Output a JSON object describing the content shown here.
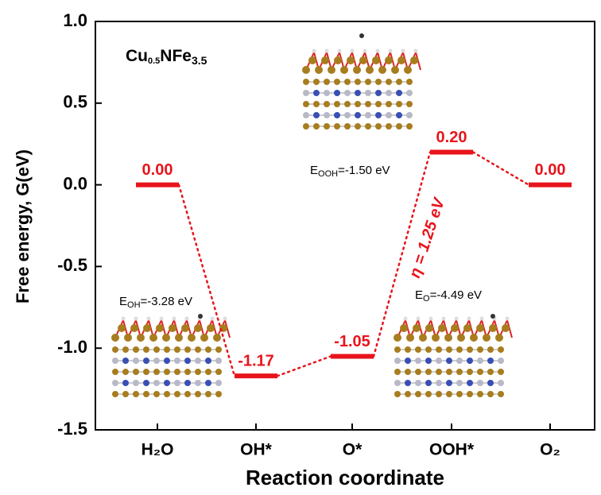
{
  "chart_data": {
    "type": "energy-levels",
    "sample_label": {
      "parts": [
        "Cu",
        "0.5",
        "NFe",
        "3.5"
      ]
    },
    "y_label": "Free energy, G(eV)",
    "x_label": "Reaction coordinate",
    "categories": [
      "H₂O",
      "OH*",
      "O*",
      "OOH*",
      "O₂"
    ],
    "values": [
      0.0,
      -1.17,
      -1.05,
      0.2,
      0.0
    ],
    "value_labels": [
      "0.00",
      "-1.17",
      "-1.05",
      "0.20",
      "0.00"
    ],
    "color": "#e8141b",
    "ylim": [
      -1.5,
      1.0
    ],
    "yticks": [
      {
        "value": -1.5,
        "label": "-1.5"
      },
      {
        "value": -1,
        "label": "-1.0"
      },
      {
        "value": -0.5,
        "label": "-0.5"
      },
      {
        "value": 0,
        "label": "0.0"
      },
      {
        "value": 0.5,
        "label": "0.5"
      },
      {
        "value": 1,
        "label": "1.0"
      }
    ],
    "annotations": [
      {
        "symbol": "E",
        "subscript": "OH",
        "text": "=-3.28 eV"
      },
      {
        "symbol": "E",
        "subscript": "OOH",
        "text": "=-1.50 eV"
      },
      {
        "symbol": "E",
        "subscript": "O",
        "text": "=-4.49 eV"
      }
    ],
    "overpotential_label": "η = 1.25 eV"
  }
}
